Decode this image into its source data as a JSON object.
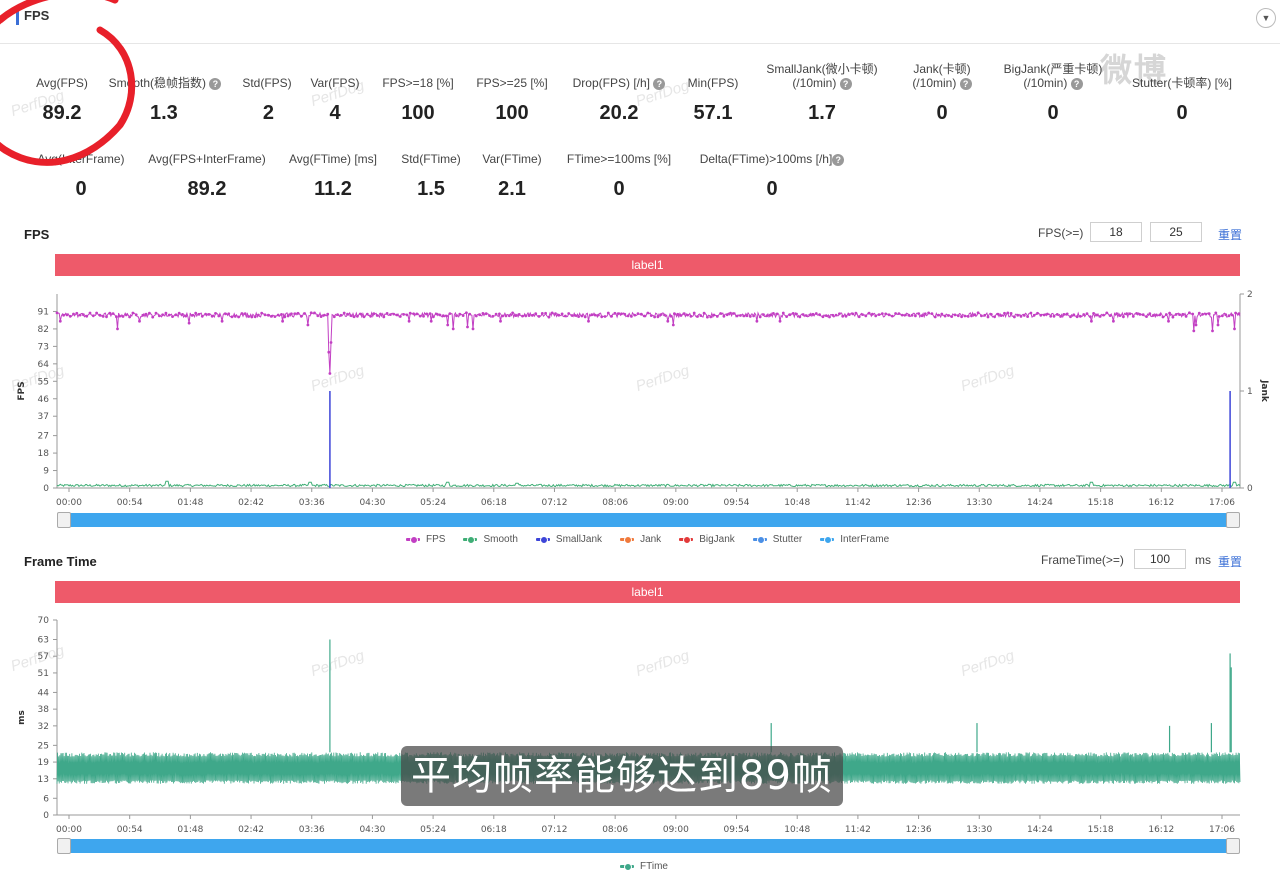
{
  "header": {
    "title": "FPS",
    "collapse_icon": "chevron-down-icon"
  },
  "watermark": {
    "text": "PerfDog",
    "weibo": "微博"
  },
  "metrics_row1": [
    {
      "label": "Avg(FPS)",
      "value": "89.2",
      "help": false
    },
    {
      "label": "Smooth(稳帧指数)",
      "value": "1.3",
      "help": true
    },
    {
      "label": "Std(FPS)",
      "value": "2",
      "help": false
    },
    {
      "label": "Var(FPS)",
      "value": "4",
      "help": false
    },
    {
      "label": "FPS>=18 [%]",
      "value": "100",
      "help": false
    },
    {
      "label": "FPS>=25 [%]",
      "value": "100",
      "help": false
    },
    {
      "label": "Drop(FPS) [/h]",
      "value": "20.2",
      "help": true
    },
    {
      "label": "Min(FPS)",
      "value": "57.1",
      "help": false
    },
    {
      "label": "SmallJank(微小卡顿)",
      "label2": "(/10min)",
      "value": "1.7",
      "help": true
    },
    {
      "label": "Jank(卡顿)",
      "label2": "(/10min)",
      "value": "0",
      "help": true
    },
    {
      "label": "BigJank(严重卡顿)",
      "label2": "(/10min)",
      "value": "0",
      "help": true
    },
    {
      "label": "Stutter(卡顿率) [%]",
      "value": "0",
      "help": false
    }
  ],
  "metrics_row2": [
    {
      "label": "Avg(InterFrame)",
      "value": "0",
      "help": false
    },
    {
      "label": "Avg(FPS+InterFrame)",
      "value": "89.2",
      "help": false
    },
    {
      "label": "Avg(FTime) [ms]",
      "value": "11.2",
      "help": false
    },
    {
      "label": "Std(FTime)",
      "value": "1.5",
      "help": false
    },
    {
      "label": "Var(FTime)",
      "value": "2.1",
      "help": false
    },
    {
      "label": "FTime>=100ms [%]",
      "value": "0",
      "help": false
    },
    {
      "label": "Delta(FTime)>100ms [/h]",
      "value": "0",
      "help": true
    }
  ],
  "fps_section": {
    "title": "FPS",
    "threshold_label": "FPS(>=)",
    "threshold_values": [
      "18",
      "25"
    ],
    "reset_label": "重置",
    "label_bar": "label1"
  },
  "frametime_section": {
    "title": "Frame Time",
    "threshold_label": "FrameTime(>=)",
    "threshold_value": "100",
    "threshold_unit": "ms",
    "reset_label": "重置",
    "label_bar": "label1"
  },
  "legend_fps": [
    {
      "name": "FPS",
      "color": "#c23fc3"
    },
    {
      "name": "Smooth",
      "color": "#3fae76"
    },
    {
      "name": "SmallJank",
      "color": "#3d45d8"
    },
    {
      "name": "Jank",
      "color": "#f07a3c"
    },
    {
      "name": "BigJank",
      "color": "#e23a3a"
    },
    {
      "name": "Stutter",
      "color": "#4a8fe6"
    },
    {
      "name": "InterFrame",
      "color": "#3ea6ee"
    }
  ],
  "legend_ft": [
    {
      "name": "FTime",
      "color": "#3fa88a"
    }
  ],
  "subtitle": "平均帧率能够达到89帧",
  "chart_data": [
    {
      "type": "line",
      "title": "",
      "ylabel": "FPS",
      "y2label": "Jank",
      "x_ticks": [
        "00:00",
        "00:54",
        "01:48",
        "02:42",
        "03:36",
        "04:30",
        "05:24",
        "06:18",
        "07:12",
        "08:06",
        "09:00",
        "09:54",
        "10:48",
        "11:42",
        "12:36",
        "13:30",
        "14:24",
        "15:18",
        "16:12",
        "17:06"
      ],
      "y_ticks": [
        "0",
        "9",
        "18",
        "27",
        "37",
        "46",
        "55",
        "64",
        "73",
        "82",
        "91"
      ],
      "y2_ticks": [
        "0",
        "1",
        "2"
      ],
      "ylim": [
        0,
        100
      ],
      "y2lim": [
        0,
        2
      ],
      "duration_s": 1075,
      "series": [
        {
          "name": "FPS",
          "baseline": 89.2,
          "dips": [
            [
              3,
              86
            ],
            [
              55,
              82
            ],
            [
              75,
              86
            ],
            [
              120,
              85
            ],
            [
              150,
              86
            ],
            [
              205,
              86
            ],
            [
              228,
              84
            ],
            [
              247,
              70
            ],
            [
              248,
              59
            ],
            [
              249,
              75
            ],
            [
              320,
              86
            ],
            [
              340,
              86
            ],
            [
              355,
              84
            ],
            [
              360,
              82
            ],
            [
              373,
              83
            ],
            [
              378,
              82
            ],
            [
              403,
              86
            ],
            [
              483,
              86
            ],
            [
              555,
              86
            ],
            [
              560,
              84
            ],
            [
              636,
              86
            ],
            [
              657,
              86
            ],
            [
              940,
              86
            ],
            [
              960,
              86
            ],
            [
              1010,
              86
            ],
            [
              1033,
              81
            ],
            [
              1035,
              84
            ],
            [
              1050,
              81
            ],
            [
              1055,
              84
            ],
            [
              1070,
              82
            ]
          ]
        },
        {
          "name": "Smooth",
          "baseline": 1.3,
          "bumps": [
            [
              100,
              3.5
            ],
            [
              230,
              3
            ],
            [
              355,
              3
            ],
            [
              418,
              2.5
            ],
            [
              940,
              3
            ],
            [
              1070,
              3
            ]
          ]
        },
        {
          "name": "SmallJank",
          "axis": "y2",
          "spikes": [
            [
              248,
              1
            ],
            [
              1066,
              1
            ]
          ]
        }
      ]
    },
    {
      "type": "line",
      "title": "",
      "ylabel": "ms",
      "x_ticks": [
        "00:00",
        "00:54",
        "01:48",
        "02:42",
        "03:36",
        "04:30",
        "05:24",
        "06:18",
        "07:12",
        "08:06",
        "09:00",
        "09:54",
        "10:48",
        "11:42",
        "12:36",
        "13:30",
        "14:24",
        "15:18",
        "16:12",
        "17:06"
      ],
      "y_ticks": [
        "0",
        "6",
        "13",
        "19",
        "25",
        "32",
        "38",
        "44",
        "51",
        "57",
        "63",
        "70"
      ],
      "ylim": [
        0,
        70
      ],
      "duration_s": 1075,
      "series": [
        {
          "name": "FTime",
          "band": [
            11.2,
            22.5
          ],
          "spikes": [
            [
              248,
              63
            ],
            [
              649,
              33
            ],
            [
              836,
              33
            ],
            [
              1011,
              32
            ],
            [
              1049,
              33
            ],
            [
              1066,
              58
            ],
            [
              1067,
              53
            ]
          ]
        }
      ]
    }
  ]
}
